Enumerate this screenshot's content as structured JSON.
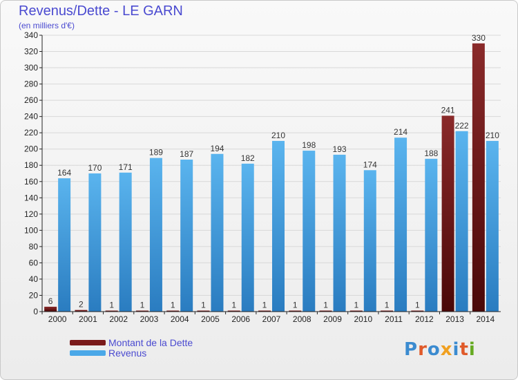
{
  "header": {
    "title": "Revenus/Dette - LE GARN",
    "subtitle": "(en milliers d'€)"
  },
  "legend": {
    "items": [
      {
        "label": "Montant de la Dette",
        "color": "#7a1a1a"
      },
      {
        "label": "Revenus",
        "color": "#4aa8e8"
      }
    ]
  },
  "logo": {
    "text": "Proxiti",
    "colors": [
      "#3b8bd0",
      "#e05a2a",
      "#3b8bd0",
      "#f0a020",
      "#3b8bd0",
      "#e05a2a",
      "#66aa22"
    ]
  },
  "colors": {
    "debt": "#7a1a1a",
    "revenue": "#4aa8e8",
    "grid": "#d8d8d8",
    "axis": "#222222"
  },
  "chart_data": {
    "type": "bar",
    "categories": [
      "2000",
      "2001",
      "2002",
      "2003",
      "2004",
      "2005",
      "2006",
      "2007",
      "2008",
      "2009",
      "2010",
      "2011",
      "2012",
      "2013",
      "2014"
    ],
    "series": [
      {
        "name": "Montant de la Dette",
        "values": [
          6,
          2,
          1,
          1,
          1,
          1,
          1,
          1,
          1,
          1,
          1,
          1,
          1,
          241,
          330
        ]
      },
      {
        "name": "Revenus",
        "values": [
          164,
          170,
          171,
          189,
          187,
          194,
          182,
          210,
          198,
          193,
          174,
          214,
          188,
          222,
          210
        ]
      }
    ],
    "ylim": [
      0,
      340
    ],
    "yticks": [
      0,
      20,
      40,
      60,
      80,
      100,
      120,
      140,
      160,
      180,
      200,
      220,
      240,
      260,
      280,
      300,
      320,
      340
    ],
    "grid": true,
    "legend_position": "bottom-left"
  }
}
